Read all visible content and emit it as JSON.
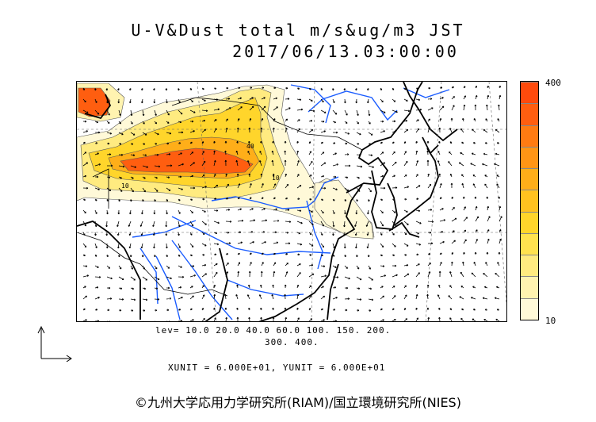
{
  "header": {
    "title": "U-V&Dust total m/s&ug/m3 JST",
    "datetime": "2017/06/13.03:00:00"
  },
  "map": {
    "region": "East Asia",
    "field": "dust concentration with wind vectors",
    "background_color": "#ffffff",
    "coastline_color": "#000000",
    "river_color": "#1a5cff",
    "vector_color": "#000000"
  },
  "colorbar": {
    "max_label": "400",
    "min_label": "10",
    "colors": [
      "#fff9d8",
      "#fff3b0",
      "#ffeb80",
      "#ffe24f",
      "#ffd52b",
      "#ffc21f",
      "#ffae19",
      "#ff9515",
      "#ff7b12",
      "#ff5e10",
      "#ff4a0c"
    ]
  },
  "levels": {
    "line1": "lev= 10.0 20.0 40.0 60.0 100. 150. 200.",
    "line2": "300. 400."
  },
  "units": "XUNIT = 6.000E+01, YUNIT = 6.000E+01",
  "copyright": "©九州大学応用力学研究所(RIAM)/国立環境研究所(NIES)"
}
